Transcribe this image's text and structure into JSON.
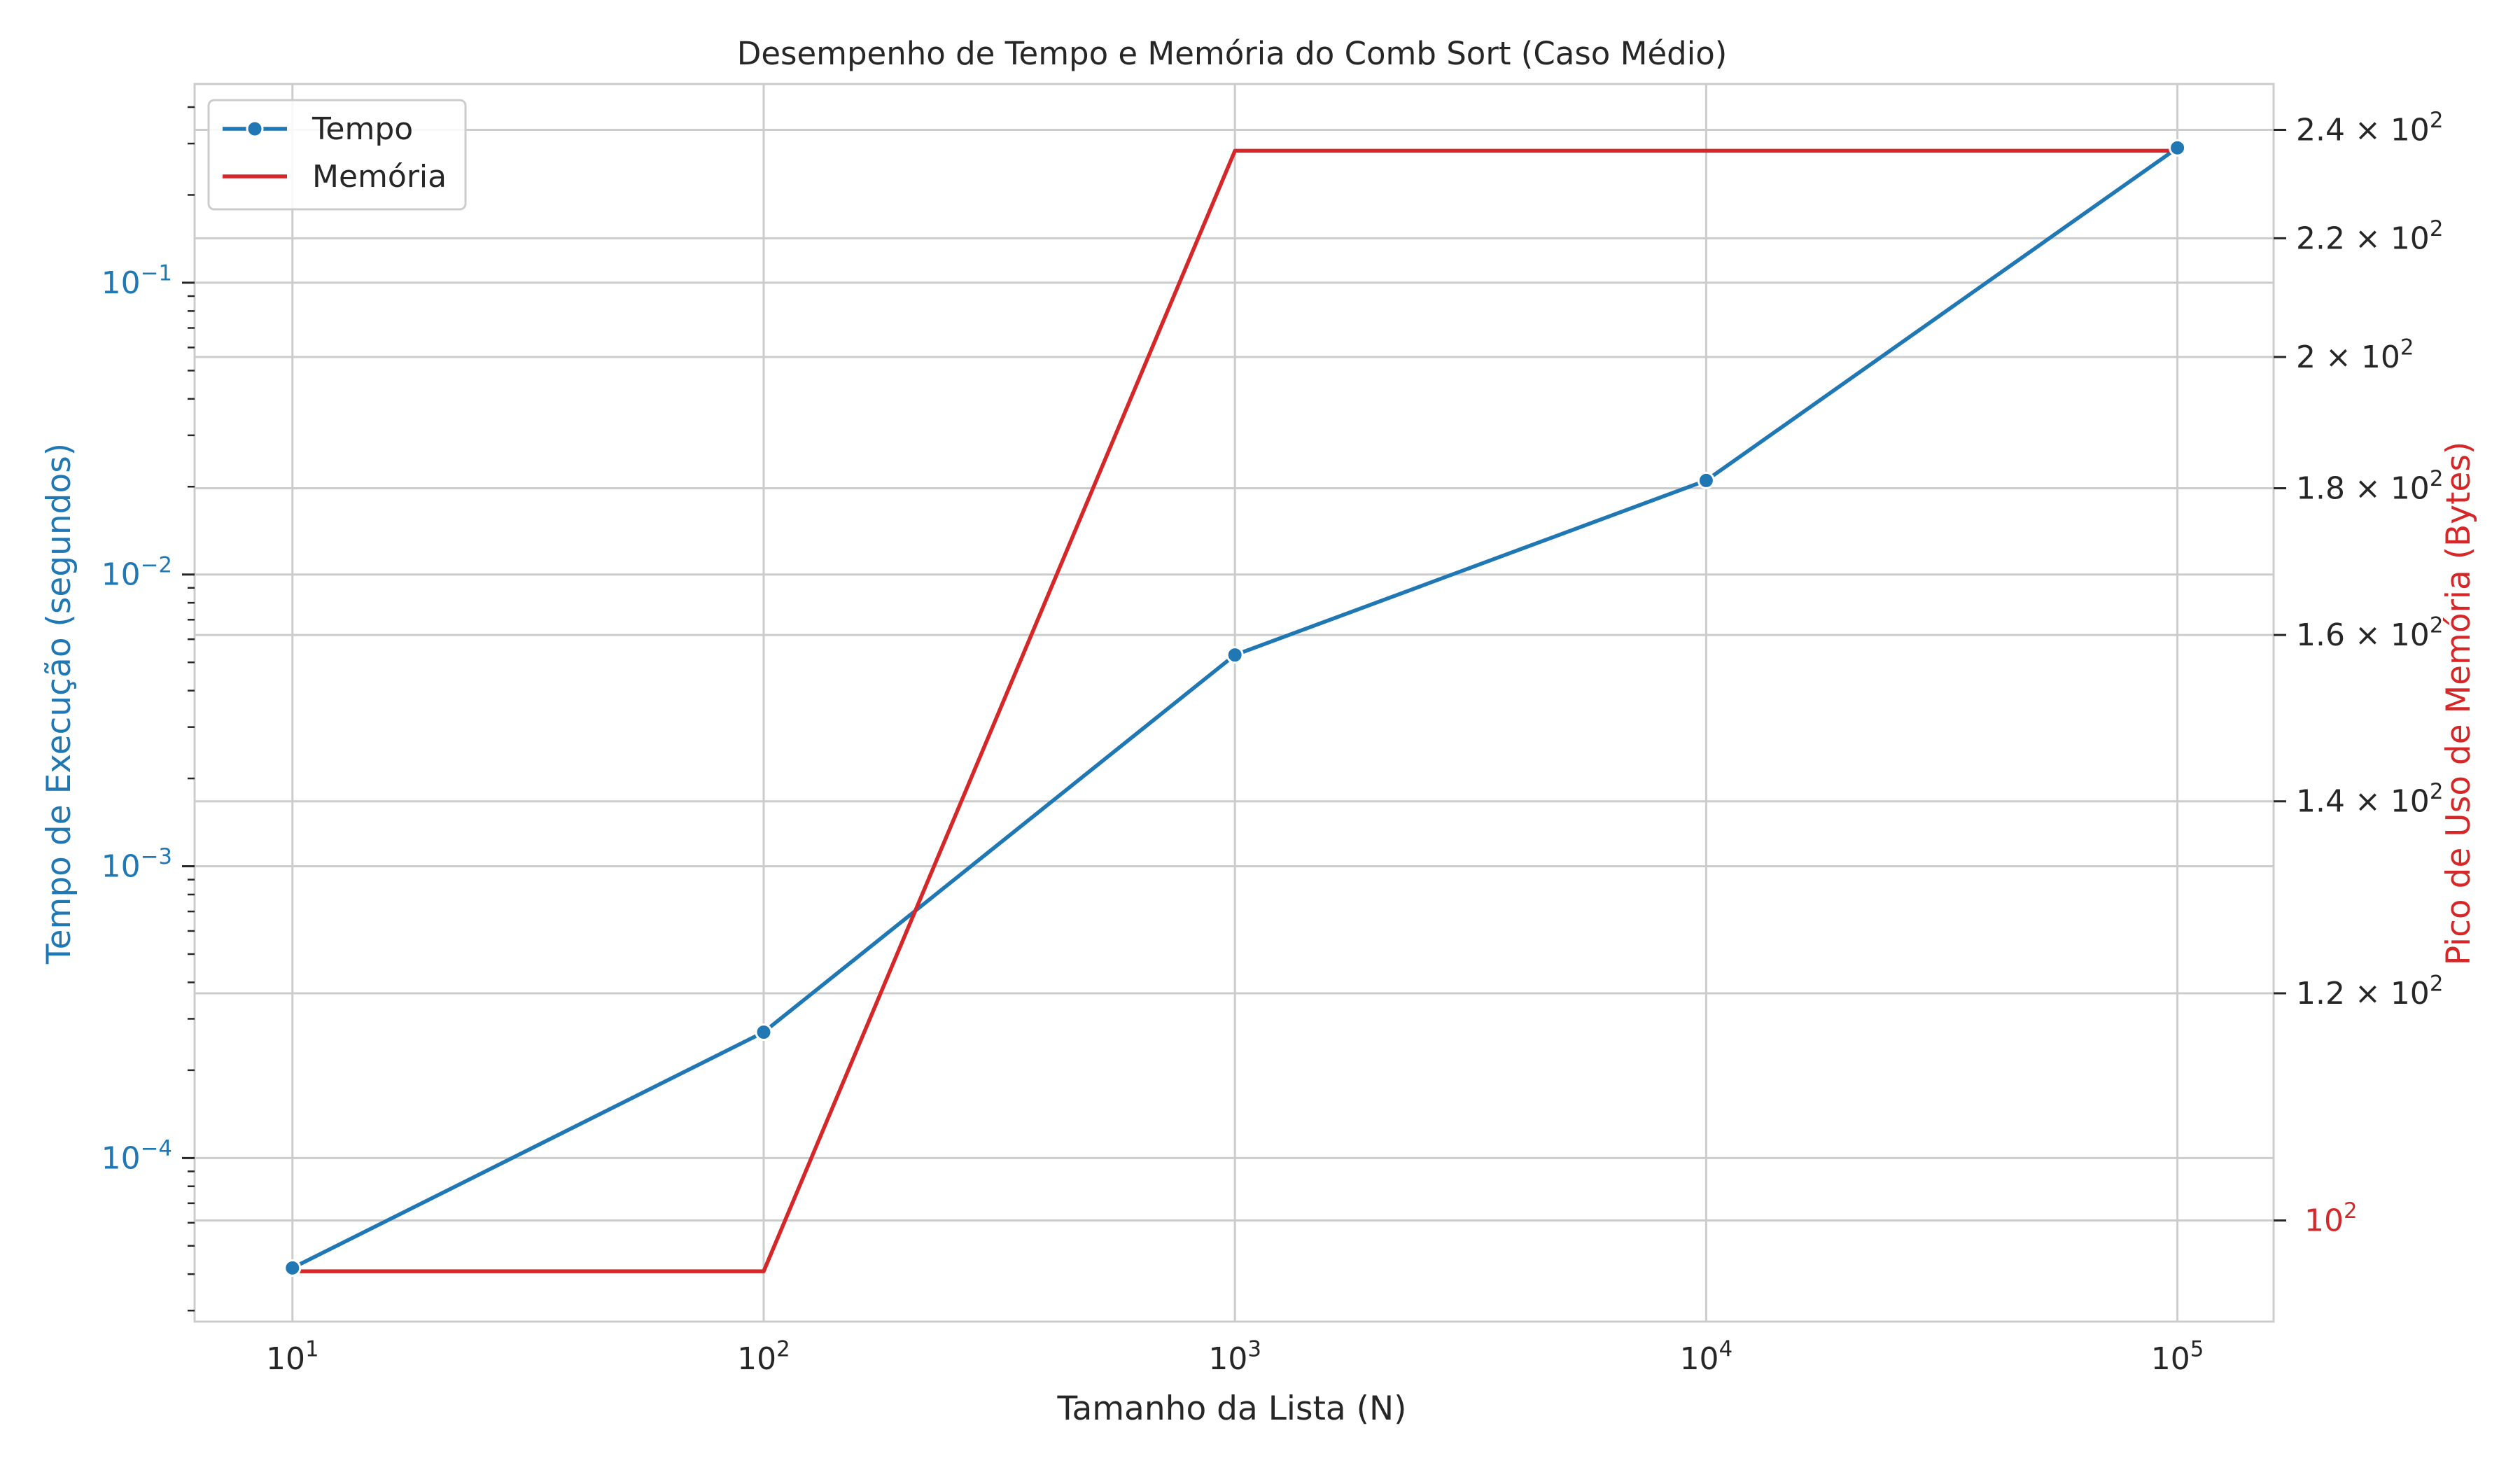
{
  "chart_data": {
    "type": "line",
    "title": "Desempenho de Tempo e Memória do Comb Sort (Caso Médio)",
    "xlabel": "Tamanho da Lista (N)",
    "ylabel_left": "Tempo de Execução (segundos)",
    "ylabel_right": "Pico de Uso de Memória (Bytes)",
    "x_scale": "log",
    "y_left_scale": "log",
    "y_right_scale": "log",
    "x": [
      10,
      100,
      1000,
      10000,
      100000
    ],
    "xlim": [
      6.2,
      160000
    ],
    "ylim_left": [
      2.75e-05,
      0.48
    ],
    "ylim_right": [
      92.2,
      249
    ],
    "x_ticks": [
      {
        "value": 10,
        "base": "10",
        "exp": "1"
      },
      {
        "value": 100,
        "base": "10",
        "exp": "2"
      },
      {
        "value": 1000,
        "base": "10",
        "exp": "3"
      },
      {
        "value": 10000,
        "base": "10",
        "exp": "4"
      },
      {
        "value": 100000,
        "base": "10",
        "exp": "5"
      }
    ],
    "y_left_ticks": [
      {
        "value": 0.1,
        "base": "10",
        "exp": "−1"
      },
      {
        "value": 0.01,
        "base": "10",
        "exp": "−2"
      },
      {
        "value": 0.001,
        "base": "10",
        "exp": "−3"
      },
      {
        "value": 0.0001,
        "base": "10",
        "exp": "−4"
      }
    ],
    "y_right_ticks": [
      {
        "value": 240,
        "base": "2.4 × 10",
        "exp": "2"
      },
      {
        "value": 220,
        "base": "2.2 × 10",
        "exp": "2"
      },
      {
        "value": 200,
        "base": "2 × 10",
        "exp": "2"
      },
      {
        "value": 180,
        "base": "1.8 × 10",
        "exp": "2"
      },
      {
        "value": 160,
        "base": "1.6 × 10",
        "exp": "2"
      },
      {
        "value": 140,
        "base": "1.4 × 10",
        "exp": "2"
      },
      {
        "value": 120,
        "base": "1.2 × 10",
        "exp": "2"
      },
      {
        "value": 100,
        "base": "10",
        "exp": "2",
        "highlight": true
      }
    ],
    "series": [
      {
        "name": "Tempo",
        "axis": "left",
        "color": "#1f77b4",
        "marker": "circle",
        "values": [
          4.2e-05,
          0.00027,
          0.0053,
          0.021,
          0.29
        ]
      },
      {
        "name": "Memória",
        "axis": "right",
        "color": "#d62728",
        "marker": "none",
        "values": [
          96,
          96,
          236,
          236,
          236
        ]
      }
    ],
    "legend": {
      "position": "top-left"
    },
    "grid": true
  }
}
